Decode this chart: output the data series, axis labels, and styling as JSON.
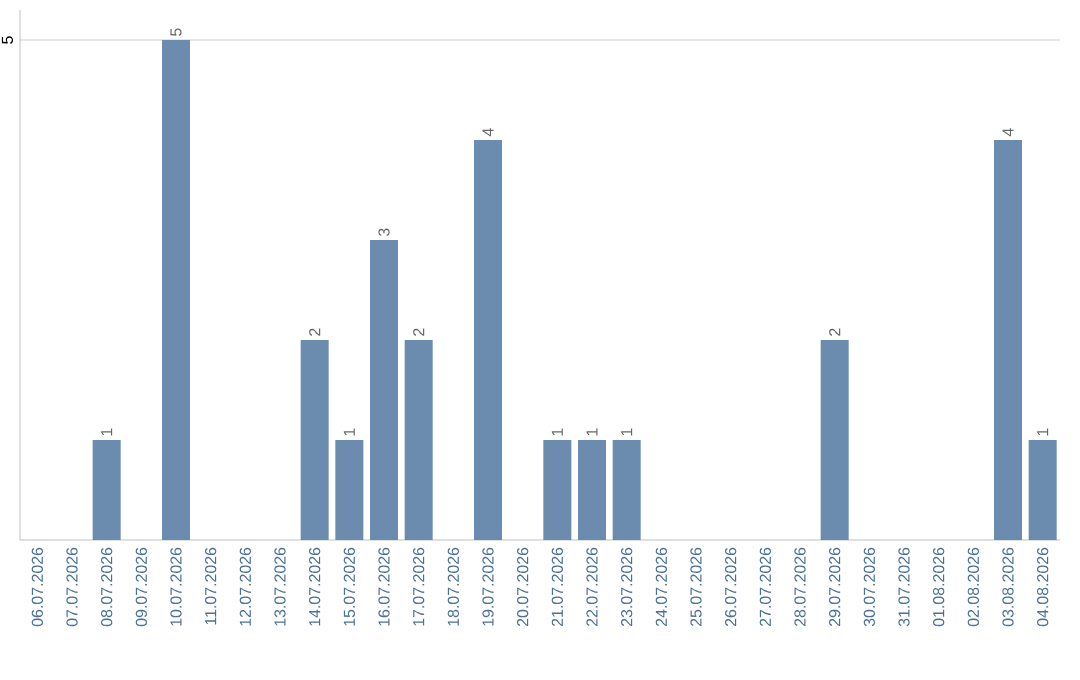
{
  "chart_data": {
    "type": "bar",
    "categories": [
      "06.07.2026",
      "07.07.2026",
      "08.07.2026",
      "09.07.2026",
      "10.07.2026",
      "11.07.2026",
      "12.07.2026",
      "13.07.2026",
      "14.07.2026",
      "15.07.2026",
      "16.07.2026",
      "17.07.2026",
      "18.07.2026",
      "19.07.2026",
      "20.07.2026",
      "21.07.2026",
      "22.07.2026",
      "23.07.2026",
      "24.07.2026",
      "25.07.2026",
      "26.07.2026",
      "27.07.2026",
      "28.07.2026",
      "29.07.2026",
      "30.07.2026",
      "31.07.2026",
      "01.08.2026",
      "02.08.2026",
      "03.08.2026",
      "04.08.2026"
    ],
    "values": [
      0,
      0,
      1,
      0,
      5,
      0,
      0,
      0,
      2,
      1,
      3,
      2,
      0,
      4,
      0,
      1,
      1,
      1,
      0,
      0,
      0,
      0,
      0,
      2,
      0,
      0,
      0,
      0,
      4,
      1
    ],
    "value_labels": [
      null,
      null,
      "1",
      null,
      "5",
      null,
      null,
      null,
      "2",
      "1",
      "3",
      "2",
      null,
      "4",
      null,
      "1",
      "1",
      "1",
      null,
      null,
      null,
      null,
      null,
      "2",
      null,
      null,
      null,
      null,
      "4",
      "1"
    ],
    "color": "#6b8cae",
    "ylim": [
      0,
      5.3
    ],
    "yticks": [
      5
    ],
    "grid": "y"
  }
}
